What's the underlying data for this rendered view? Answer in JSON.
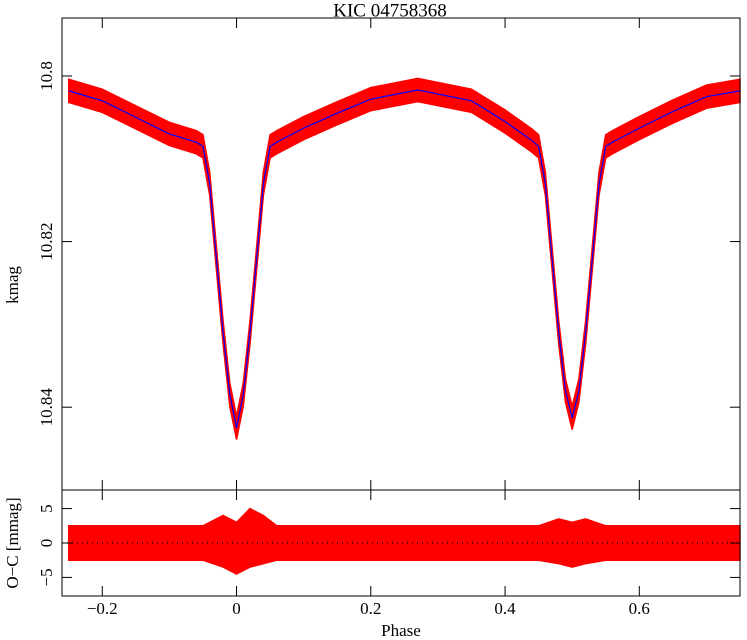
{
  "chart_data": [
    {
      "type": "line",
      "title": "KIC 04758368",
      "y_label": "kmag",
      "xlim": [
        -0.26,
        0.75
      ],
      "xticks": [
        -0.2,
        0,
        0.2,
        0.4,
        0.6
      ],
      "ylim": [
        10.793,
        10.85
      ],
      "yticks": [
        10.8,
        10.82,
        10.84
      ],
      "y_inverted": true,
      "x": [
        -0.25,
        -0.2,
        -0.15,
        -0.1,
        -0.06,
        -0.05,
        -0.04,
        -0.03,
        -0.02,
        -0.01,
        0,
        0.01,
        0.02,
        0.03,
        0.04,
        0.05,
        0.06,
        0.1,
        0.15,
        0.2,
        0.27,
        0.35,
        0.4,
        0.44,
        0.45,
        0.46,
        0.47,
        0.48,
        0.49,
        0.5,
        0.51,
        0.52,
        0.53,
        0.54,
        0.55,
        0.56,
        0.6,
        0.65,
        0.7,
        0.75
      ],
      "series": [
        {
          "color": "#ff0000",
          "lower": [
            10.8004,
            10.8016,
            10.8036,
            10.8056,
            10.8066,
            10.8071,
            10.8116,
            10.8206,
            10.8296,
            10.8371,
            10.8411,
            10.8371,
            10.8296,
            10.8206,
            10.8116,
            10.8071,
            10.8066,
            10.8049,
            10.8031,
            10.8014,
            10.8003,
            10.8016,
            10.8041,
            10.8064,
            10.8071,
            10.8116,
            10.8206,
            10.8296,
            10.8366,
            10.8399,
            10.8366,
            10.8296,
            10.8206,
            10.8116,
            10.8071,
            10.8066,
            10.8049,
            10.8029,
            10.8011,
            10.8004
          ],
          "upper": [
            10.8032,
            10.8044,
            10.8064,
            10.8084,
            10.8094,
            10.8099,
            10.8144,
            10.8234,
            10.8324,
            10.8399,
            10.8439,
            10.8399,
            10.8324,
            10.8234,
            10.8144,
            10.8099,
            10.8094,
            10.8077,
            10.8059,
            10.8042,
            10.8031,
            10.8044,
            10.8069,
            10.8092,
            10.8099,
            10.8144,
            10.8234,
            10.8324,
            10.8394,
            10.8427,
            10.8394,
            10.8324,
            10.8234,
            10.8144,
            10.8099,
            10.8094,
            10.8077,
            10.8057,
            10.8039,
            10.8032
          ]
        },
        {
          "color": "#0000ff",
          "values": [
            10.8018,
            10.803,
            10.805,
            10.807,
            10.808,
            10.8085,
            10.813,
            10.822,
            10.831,
            10.8385,
            10.8425,
            10.8385,
            10.831,
            10.822,
            10.813,
            10.8085,
            10.808,
            10.8063,
            10.8045,
            10.8028,
            10.8017,
            10.803,
            10.8055,
            10.8078,
            10.8085,
            10.813,
            10.822,
            10.831,
            10.838,
            10.8413,
            10.838,
            10.831,
            10.822,
            10.813,
            10.8085,
            10.808,
            10.8063,
            10.8043,
            10.8025,
            10.8018
          ]
        }
      ]
    },
    {
      "type": "line",
      "x_label": "Phase",
      "y_label": "O−C [mmag]",
      "xlim": [
        -0.26,
        0.75
      ],
      "xticks": [
        {
          "value": -0.2,
          "label": "−0.2"
        },
        0,
        0.2,
        0.4,
        0.6
      ],
      "ylim": [
        -7.7,
        7.7
      ],
      "yticks": [
        {
          "value": -5,
          "label": "−5"
        },
        0,
        5
      ],
      "hline": 0,
      "x": [
        -0.25,
        -0.05,
        -0.02,
        0,
        0.02,
        0.04,
        0.06,
        0.45,
        0.48,
        0.5,
        0.52,
        0.55,
        0.75
      ],
      "series": [
        {
          "color": "#ff0000",
          "lower": [
            -2.5,
            -2.5,
            -3.5,
            -4.5,
            -3.5,
            -3,
            -2.5,
            -2.5,
            -3,
            -3.5,
            -3,
            -2.5,
            -2.5
          ],
          "upper": [
            2.5,
            2.5,
            4,
            3,
            5,
            4,
            2.5,
            2.5,
            3.5,
            3,
            3.5,
            2.5,
            2.5
          ]
        }
      ]
    }
  ]
}
